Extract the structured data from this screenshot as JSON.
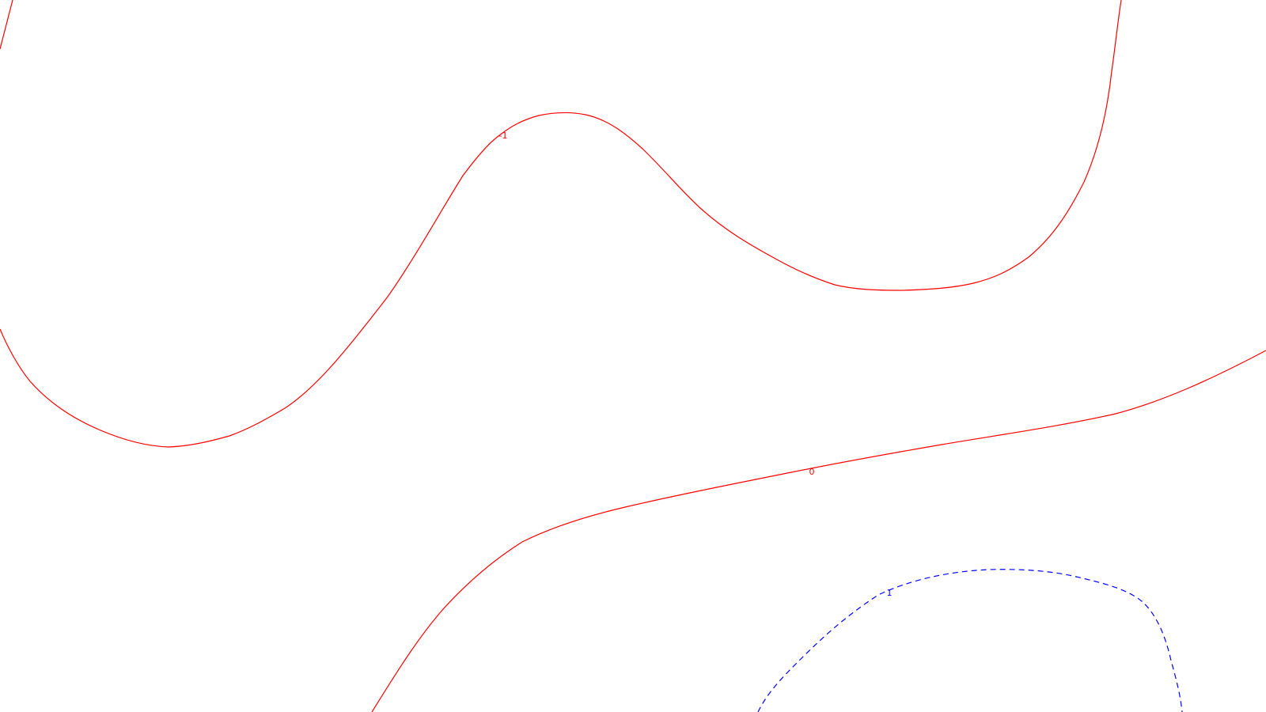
{
  "chart_data": {
    "type": "contour",
    "title": "",
    "xlabel": "",
    "ylabel": "",
    "grid": false,
    "legend": "none",
    "background": "#ffffff",
    "contours": [
      {
        "level": "-1",
        "label": "-1",
        "color": "#ff0000",
        "style": "solid"
      },
      {
        "level": "0",
        "label": "0",
        "color": "#ff0000",
        "style": "solid"
      },
      {
        "level": "1",
        "label": "1",
        "color": "#0000ff",
        "style": "dashed"
      }
    ]
  }
}
